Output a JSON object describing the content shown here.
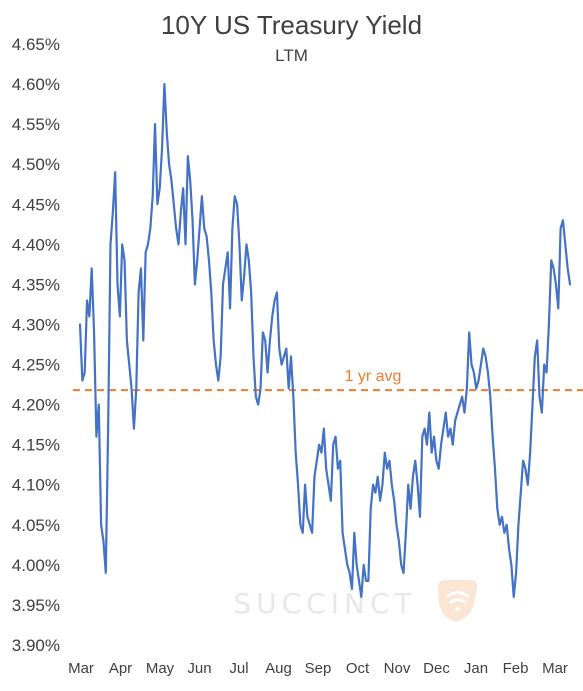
{
  "chart_data": {
    "type": "line",
    "title": "10Y US Treasury Yield",
    "subtitle": "LTM",
    "xlabel": "",
    "ylabel": "",
    "ylim": [
      3.9,
      4.65
    ],
    "y_ticks": [
      "4.65%",
      "4.60%",
      "4.55%",
      "4.50%",
      "4.45%",
      "4.40%",
      "4.35%",
      "4.30%",
      "4.25%",
      "4.20%",
      "4.15%",
      "4.10%",
      "4.05%",
      "4.00%",
      "3.95%",
      "3.90%"
    ],
    "x_ticks": [
      "Mar",
      "Apr",
      "May",
      "Jun",
      "Jul",
      "Aug",
      "Sep",
      "Oct",
      "Nov",
      "Dec",
      "Jan",
      "Feb",
      "Mar"
    ],
    "grid": false,
    "average": {
      "label": "1 yr avg",
      "value": 4.218,
      "color": "#ED7D31"
    },
    "series": [
      {
        "color": "#4472C4",
        "values": [
          4.3,
          4.23,
          4.24,
          4.33,
          4.31,
          4.37,
          4.29,
          4.16,
          4.2,
          4.05,
          4.03,
          3.99,
          4.17,
          4.4,
          4.44,
          4.49,
          4.35,
          4.31,
          4.4,
          4.38,
          4.28,
          4.25,
          4.22,
          4.17,
          4.22,
          4.34,
          4.37,
          4.28,
          4.39,
          4.4,
          4.42,
          4.46,
          4.55,
          4.45,
          4.47,
          4.52,
          4.6,
          4.54,
          4.5,
          4.48,
          4.45,
          4.42,
          4.4,
          4.44,
          4.47,
          4.4,
          4.51,
          4.48,
          4.43,
          4.35,
          4.38,
          4.42,
          4.46,
          4.42,
          4.41,
          4.38,
          4.34,
          4.28,
          4.25,
          4.23,
          4.26,
          4.35,
          4.37,
          4.39,
          4.32,
          4.42,
          4.46,
          4.45,
          4.4,
          4.33,
          4.36,
          4.4,
          4.38,
          4.34,
          4.26,
          4.21,
          4.2,
          4.22,
          4.29,
          4.28,
          4.24,
          4.28,
          4.31,
          4.33,
          4.34,
          4.27,
          4.25,
          4.26,
          4.27,
          4.22,
          4.26,
          4.21,
          4.14,
          4.1,
          4.05,
          4.04,
          4.1,
          4.06,
          4.05,
          4.04,
          4.11,
          4.13,
          4.15,
          4.14,
          4.17,
          4.12,
          4.1,
          4.08,
          4.15,
          4.16,
          4.12,
          4.13,
          4.04,
          4.02,
          4.0,
          3.99,
          3.97,
          4.04,
          4.0,
          3.98,
          3.96,
          4.0,
          3.98,
          3.98,
          4.07,
          4.1,
          4.09,
          4.11,
          4.08,
          4.1,
          4.14,
          4.12,
          4.13,
          4.1,
          4.08,
          4.05,
          4.03,
          4.0,
          3.99,
          4.04,
          4.1,
          4.07,
          4.11,
          4.13,
          4.1,
          4.06,
          4.16,
          4.17,
          4.15,
          4.19,
          4.14,
          4.16,
          4.13,
          4.12,
          4.15,
          4.17,
          4.19,
          4.16,
          4.17,
          4.15,
          4.18,
          4.19,
          4.2,
          4.21,
          4.19,
          4.22,
          4.29,
          4.25,
          4.24,
          4.22,
          4.23,
          4.25,
          4.27,
          4.26,
          4.24,
          4.21,
          4.16,
          4.12,
          4.07,
          4.05,
          4.06,
          4.04,
          4.05,
          4.02,
          4.0,
          3.96,
          3.99,
          4.05,
          4.09,
          4.13,
          4.12,
          4.1,
          4.14,
          4.2,
          4.26,
          4.28,
          4.21,
          4.19,
          4.25,
          4.24,
          4.3,
          4.38,
          4.37,
          4.35,
          4.32,
          4.42,
          4.43,
          4.4,
          4.37,
          4.35
        ]
      }
    ]
  },
  "watermark": {
    "text": "SUCCINCT"
  }
}
